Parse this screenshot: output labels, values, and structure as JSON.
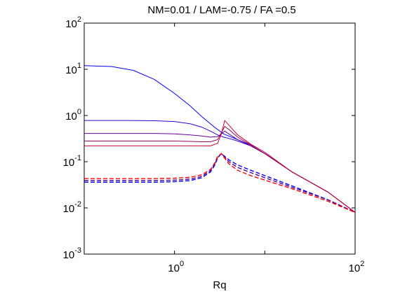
{
  "chart_data": {
    "type": "line",
    "title": "NM=0.01 / LAM=-0.75 / FA =0.5",
    "xlabel": "Rq",
    "ylabel": "",
    "xscale": "log",
    "yscale": "log",
    "xlim": [
      0.1,
      100
    ],
    "ylim": [
      0.001,
      100
    ],
    "grid": false,
    "legend": "none",
    "x_ticks": [
      {
        "value": 1,
        "base": "10",
        "exp": "0"
      },
      {
        "value": 100,
        "base": "10",
        "exp": "2"
      }
    ],
    "y_ticks": [
      {
        "value": 0.001,
        "base": "10",
        "exp": "-3"
      },
      {
        "value": 0.01,
        "base": "10",
        "exp": "-2"
      },
      {
        "value": 0.1,
        "base": "10",
        "exp": "-1"
      },
      {
        "value": 1,
        "base": "10",
        "exp": "0"
      },
      {
        "value": 10,
        "base": "10",
        "exp": "1"
      },
      {
        "value": 100,
        "base": "10",
        "exp": "2"
      }
    ],
    "series": [
      {
        "style": "solid",
        "color": "#0000ff",
        "x": [
          0.1,
          0.2,
          0.35,
          0.6,
          1,
          1.5,
          2,
          2.8,
          3.5,
          5,
          7,
          10,
          20,
          50,
          100
        ],
        "y": [
          12,
          11.5,
          9.5,
          6,
          3,
          1.6,
          0.95,
          0.55,
          0.4,
          0.3,
          0.23,
          0.15,
          0.06,
          0.022,
          0.008
        ]
      },
      {
        "style": "solid",
        "color": "#3300cc",
        "x": [
          0.1,
          0.3,
          0.6,
          1,
          1.5,
          2,
          2.5,
          3,
          3.5,
          4,
          5,
          7,
          10,
          20,
          50,
          100
        ],
        "y": [
          0.78,
          0.78,
          0.77,
          0.74,
          0.66,
          0.56,
          0.46,
          0.38,
          0.34,
          0.32,
          0.28,
          0.22,
          0.15,
          0.06,
          0.022,
          0.008
        ]
      },
      {
        "style": "solid",
        "color": "#660099",
        "x": [
          0.1,
          0.3,
          0.6,
          1,
          1.5,
          2,
          2.5,
          3,
          3.3,
          3.6,
          4,
          5,
          7,
          10,
          20,
          50,
          100
        ],
        "y": [
          0.41,
          0.41,
          0.41,
          0.4,
          0.38,
          0.36,
          0.34,
          0.35,
          0.4,
          0.46,
          0.4,
          0.3,
          0.22,
          0.15,
          0.06,
          0.022,
          0.008
        ]
      },
      {
        "style": "solid",
        "color": "#990066",
        "x": [
          0.1,
          0.3,
          0.6,
          1,
          1.5,
          2,
          2.5,
          3,
          3.3,
          3.6,
          4,
          5,
          7,
          10,
          20,
          50,
          100
        ],
        "y": [
          0.28,
          0.28,
          0.28,
          0.28,
          0.275,
          0.27,
          0.27,
          0.3,
          0.42,
          0.58,
          0.5,
          0.34,
          0.23,
          0.15,
          0.06,
          0.022,
          0.008
        ]
      },
      {
        "style": "solid",
        "color": "#cc0033",
        "x": [
          0.1,
          0.3,
          0.6,
          1,
          1.5,
          2,
          2.5,
          3,
          3.3,
          3.6,
          4,
          5,
          7,
          10,
          20,
          50,
          100
        ],
        "y": [
          0.22,
          0.22,
          0.22,
          0.22,
          0.22,
          0.22,
          0.22,
          0.25,
          0.4,
          0.78,
          0.62,
          0.38,
          0.24,
          0.16,
          0.06,
          0.022,
          0.008
        ]
      },
      {
        "style": "dashed",
        "color": "#0000ff",
        "x": [
          0.1,
          0.3,
          0.6,
          1,
          1.5,
          2,
          2.5,
          2.8,
          3,
          3.3,
          4,
          5,
          7,
          10,
          20,
          50,
          100
        ],
        "y": [
          0.036,
          0.036,
          0.036,
          0.037,
          0.039,
          0.045,
          0.06,
          0.085,
          0.12,
          0.15,
          0.11,
          0.085,
          0.065,
          0.05,
          0.03,
          0.015,
          0.008
        ]
      },
      {
        "style": "dashed",
        "color": "#550099",
        "x": [
          0.1,
          0.3,
          0.6,
          1,
          1.5,
          2,
          2.5,
          2.8,
          3,
          3.3,
          4,
          5,
          7,
          10,
          20,
          50,
          100
        ],
        "y": [
          0.039,
          0.039,
          0.039,
          0.04,
          0.042,
          0.048,
          0.064,
          0.09,
          0.125,
          0.15,
          0.1,
          0.075,
          0.058,
          0.045,
          0.028,
          0.015,
          0.008
        ]
      },
      {
        "style": "dashed",
        "color": "#ff0000",
        "x": [
          0.1,
          0.3,
          0.6,
          1,
          1.5,
          2,
          2.5,
          2.8,
          3,
          3.3,
          4,
          5,
          7,
          10,
          20,
          50,
          100
        ],
        "y": [
          0.043,
          0.043,
          0.043,
          0.044,
          0.046,
          0.052,
          0.068,
          0.095,
          0.13,
          0.15,
          0.09,
          0.065,
          0.05,
          0.04,
          0.026,
          0.014,
          0.008
        ]
      }
    ]
  }
}
